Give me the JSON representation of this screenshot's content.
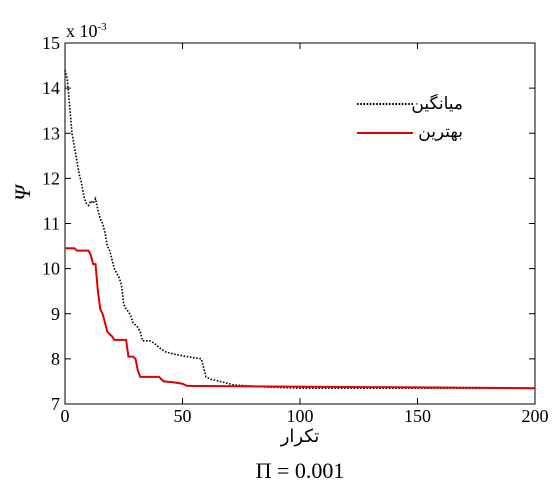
{
  "chart_data": {
    "type": "line",
    "xlabel": "تکرار",
    "ylabel": "Ψ",
    "y_multiplier": "x 10",
    "y_multiplier_exp": "-3",
    "caption": "Π = 0.001",
    "xlim": [
      0,
      200
    ],
    "ylim": [
      7,
      15
    ],
    "x_ticks": [
      0,
      50,
      100,
      150,
      200
    ],
    "y_ticks": [
      7,
      8,
      9,
      10,
      11,
      12,
      13,
      14,
      15
    ],
    "grid": false,
    "legend_position": "top-right",
    "series": [
      {
        "name": "میانگین",
        "color": "#000000",
        "style": "dotted",
        "points": [
          [
            0,
            14.4
          ],
          [
            1,
            14.2
          ],
          [
            2,
            13.6
          ],
          [
            3,
            13.0
          ],
          [
            4,
            12.7
          ],
          [
            5,
            12.4
          ],
          [
            6,
            12.1
          ],
          [
            7,
            11.9
          ],
          [
            8,
            11.6
          ],
          [
            9,
            11.45
          ],
          [
            10,
            11.4
          ],
          [
            11,
            11.5
          ],
          [
            12,
            11.45
          ],
          [
            13,
            11.55
          ],
          [
            14,
            11.3
          ],
          [
            15,
            11.1
          ],
          [
            16,
            11.0
          ],
          [
            17,
            10.8
          ],
          [
            18,
            10.5
          ],
          [
            19,
            10.4
          ],
          [
            20,
            10.2
          ],
          [
            21,
            10.0
          ],
          [
            22,
            9.9
          ],
          [
            23,
            9.8
          ],
          [
            24,
            9.65
          ],
          [
            25,
            9.2
          ],
          [
            26,
            9.1
          ],
          [
            27,
            9.05
          ],
          [
            28,
            8.95
          ],
          [
            29,
            8.8
          ],
          [
            30,
            8.75
          ],
          [
            31,
            8.7
          ],
          [
            32,
            8.6
          ],
          [
            33,
            8.4
          ],
          [
            36,
            8.4
          ],
          [
            38,
            8.35
          ],
          [
            40,
            8.25
          ],
          [
            43,
            8.15
          ],
          [
            47,
            8.1
          ],
          [
            52,
            8.05
          ],
          [
            58,
            8.0
          ],
          [
            59,
            7.8
          ],
          [
            60,
            7.6
          ],
          [
            62,
            7.55
          ],
          [
            66,
            7.5
          ],
          [
            72,
            7.42
          ],
          [
            85,
            7.38
          ],
          [
            100,
            7.35
          ],
          [
            200,
            7.35
          ]
        ]
      },
      {
        "name": "بهترین",
        "color": "#e00000",
        "style": "solid",
        "points": [
          [
            0,
            10.45
          ],
          [
            4,
            10.45
          ],
          [
            5,
            10.4
          ],
          [
            10,
            10.4
          ],
          [
            11,
            10.3
          ],
          [
            12,
            10.1
          ],
          [
            13,
            10.1
          ],
          [
            14,
            9.5
          ],
          [
            15,
            9.1
          ],
          [
            16,
            9.0
          ],
          [
            17,
            8.8
          ],
          [
            18,
            8.6
          ],
          [
            19,
            8.55
          ],
          [
            20,
            8.5
          ],
          [
            21,
            8.42
          ],
          [
            26,
            8.42
          ],
          [
            27,
            8.05
          ],
          [
            29,
            8.05
          ],
          [
            30,
            8.0
          ],
          [
            31,
            7.75
          ],
          [
            32,
            7.6
          ],
          [
            40,
            7.6
          ],
          [
            42,
            7.5
          ],
          [
            46,
            7.48
          ],
          [
            50,
            7.45
          ],
          [
            52,
            7.4
          ],
          [
            200,
            7.35
          ]
        ]
      }
    ]
  }
}
